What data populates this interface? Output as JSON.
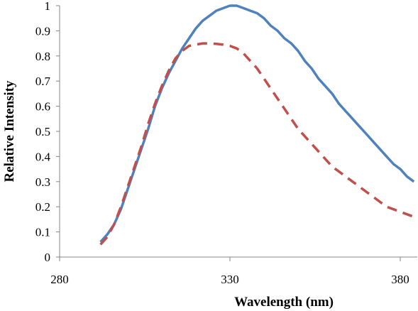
{
  "chart_data": {
    "type": "line",
    "title": "",
    "xlabel": "Wavelength (nm)",
    "ylabel": "Relative  Intensity",
    "xlim": [
      280,
      385
    ],
    "ylim": [
      0,
      1
    ],
    "xticks": [
      280,
      330,
      380
    ],
    "yticks": [
      0,
      0.1,
      0.2,
      0.3,
      0.4,
      0.5,
      0.6,
      0.7,
      0.8,
      0.9,
      1
    ],
    "ytick_labels": [
      "0",
      "0.1",
      "0.2",
      "0.3",
      "0.4",
      "0.5",
      "0.6",
      "0.7",
      "0.8",
      "0.9",
      "1"
    ],
    "grid": false,
    "legend": "none",
    "series": [
      {
        "color": "#4f81bd",
        "style": "solid",
        "x": [
          292,
          294,
          296,
          298,
          300,
          302,
          304,
          306,
          308,
          310,
          312,
          314,
          316,
          318,
          320,
          322,
          324,
          326,
          328,
          330,
          332,
          334,
          336,
          338,
          340,
          342,
          344,
          346,
          348,
          350,
          352,
          354,
          356,
          358,
          360,
          362,
          364,
          366,
          368,
          370,
          372,
          374,
          376,
          378,
          380,
          382,
          384
        ],
        "y": [
          0.06,
          0.09,
          0.13,
          0.19,
          0.27,
          0.35,
          0.43,
          0.51,
          0.6,
          0.67,
          0.73,
          0.78,
          0.83,
          0.87,
          0.91,
          0.94,
          0.96,
          0.98,
          0.99,
          1.0,
          1.0,
          0.99,
          0.98,
          0.97,
          0.95,
          0.92,
          0.9,
          0.87,
          0.85,
          0.82,
          0.78,
          0.75,
          0.71,
          0.68,
          0.65,
          0.61,
          0.58,
          0.55,
          0.52,
          0.49,
          0.46,
          0.43,
          0.4,
          0.37,
          0.35,
          0.32,
          0.3
        ]
      },
      {
        "color": "#c0504d",
        "style": "dashed",
        "x": [
          292,
          294,
          296,
          298,
          300,
          302,
          304,
          306,
          308,
          310,
          312,
          314,
          316,
          318,
          320,
          322,
          324,
          326,
          328,
          330,
          332,
          334,
          336,
          338,
          340,
          342,
          344,
          346,
          348,
          350,
          352,
          354,
          356,
          358,
          360,
          362,
          364,
          366,
          368,
          370,
          372,
          374,
          376,
          378,
          380,
          382,
          384
        ],
        "y": [
          0.05,
          0.08,
          0.13,
          0.2,
          0.28,
          0.36,
          0.44,
          0.53,
          0.61,
          0.68,
          0.74,
          0.79,
          0.82,
          0.84,
          0.845,
          0.85,
          0.85,
          0.848,
          0.845,
          0.84,
          0.83,
          0.81,
          0.78,
          0.75,
          0.71,
          0.67,
          0.63,
          0.59,
          0.55,
          0.51,
          0.48,
          0.45,
          0.42,
          0.39,
          0.36,
          0.34,
          0.32,
          0.3,
          0.28,
          0.26,
          0.24,
          0.22,
          0.2,
          0.19,
          0.18,
          0.17,
          0.16
        ]
      }
    ]
  }
}
